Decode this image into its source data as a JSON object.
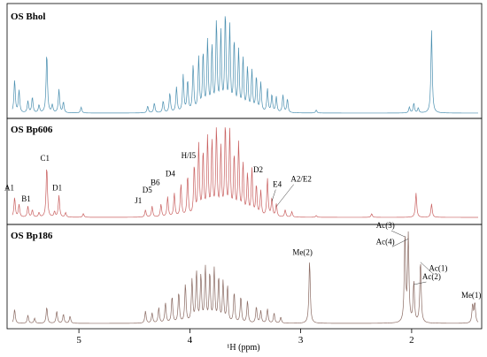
{
  "chart_data": {
    "type": "line",
    "xlabel": "¹H (ppm)",
    "x_axis": {
      "xlim": [
        5.6,
        1.4
      ],
      "reversed": true,
      "ticks": [
        5,
        4,
        3,
        2
      ],
      "tick_labels": [
        "5",
        "4",
        "3",
        "2"
      ]
    },
    "grid": false,
    "panels": [
      {
        "title": "OS Bhol",
        "color": "#4a8fb0",
        "peaks": [
          {
            "ppm": 5.58,
            "height": 0.34
          },
          {
            "ppm": 5.54,
            "height": 0.23
          },
          {
            "ppm": 5.46,
            "height": 0.12
          },
          {
            "ppm": 5.42,
            "height": 0.16
          },
          {
            "ppm": 5.36,
            "height": 0.08
          },
          {
            "ppm": 5.29,
            "height": 0.62
          },
          {
            "ppm": 5.24,
            "height": 0.08
          },
          {
            "ppm": 5.18,
            "height": 0.24
          },
          {
            "ppm": 5.14,
            "height": 0.11
          },
          {
            "ppm": 4.98,
            "height": 0.06
          },
          {
            "ppm": 4.38,
            "height": 0.07
          },
          {
            "ppm": 4.32,
            "height": 0.1
          },
          {
            "ppm": 4.24,
            "height": 0.12
          },
          {
            "ppm": 4.18,
            "height": 0.2
          },
          {
            "ppm": 4.12,
            "height": 0.26
          },
          {
            "ppm": 4.06,
            "height": 0.38
          },
          {
            "ppm": 4.02,
            "height": 0.32
          },
          {
            "ppm": 3.97,
            "height": 0.48
          },
          {
            "ppm": 3.92,
            "height": 0.55
          },
          {
            "ppm": 3.88,
            "height": 0.6
          },
          {
            "ppm": 3.84,
            "height": 0.72
          },
          {
            "ppm": 3.8,
            "height": 0.66
          },
          {
            "ppm": 3.76,
            "height": 0.92
          },
          {
            "ppm": 3.72,
            "height": 0.8
          },
          {
            "ppm": 3.68,
            "height": 1.0
          },
          {
            "ppm": 3.64,
            "height": 0.86
          },
          {
            "ppm": 3.6,
            "height": 0.72
          },
          {
            "ppm": 3.56,
            "height": 0.62
          },
          {
            "ppm": 3.52,
            "height": 0.55
          },
          {
            "ppm": 3.48,
            "height": 0.45
          },
          {
            "ppm": 3.44,
            "height": 0.42
          },
          {
            "ppm": 3.4,
            "height": 0.36
          },
          {
            "ppm": 3.36,
            "height": 0.3
          },
          {
            "ppm": 3.3,
            "height": 0.24
          },
          {
            "ppm": 3.26,
            "height": 0.18
          },
          {
            "ppm": 3.22,
            "height": 0.16
          },
          {
            "ppm": 3.16,
            "height": 0.18
          },
          {
            "ppm": 3.12,
            "height": 0.14
          },
          {
            "ppm": 2.86,
            "height": 0.03
          },
          {
            "ppm": 2.02,
            "height": 0.06
          },
          {
            "ppm": 1.98,
            "height": 0.1
          },
          {
            "ppm": 1.94,
            "height": 0.05
          },
          {
            "ppm": 1.82,
            "height": 0.85
          }
        ],
        "labels": []
      },
      {
        "title": "OS Bp606",
        "color": "#c96060",
        "peaks": [
          {
            "ppm": 5.58,
            "height": 0.22
          },
          {
            "ppm": 5.54,
            "height": 0.14
          },
          {
            "ppm": 5.46,
            "height": 0.12
          },
          {
            "ppm": 5.42,
            "height": 0.08
          },
          {
            "ppm": 5.36,
            "height": 0.05
          },
          {
            "ppm": 5.29,
            "height": 0.57
          },
          {
            "ppm": 5.22,
            "height": 0.06
          },
          {
            "ppm": 5.18,
            "height": 0.24
          },
          {
            "ppm": 5.12,
            "height": 0.05
          },
          {
            "ppm": 4.96,
            "height": 0.04
          },
          {
            "ppm": 4.4,
            "height": 0.08
          },
          {
            "ppm": 4.34,
            "height": 0.12
          },
          {
            "ppm": 4.26,
            "height": 0.14
          },
          {
            "ppm": 4.2,
            "height": 0.22
          },
          {
            "ppm": 4.14,
            "height": 0.26
          },
          {
            "ppm": 4.08,
            "height": 0.36
          },
          {
            "ppm": 4.02,
            "height": 0.45
          },
          {
            "ppm": 3.96,
            "height": 0.56
          },
          {
            "ppm": 3.92,
            "height": 0.78
          },
          {
            "ppm": 3.88,
            "height": 0.7
          },
          {
            "ppm": 3.84,
            "height": 0.86
          },
          {
            "ppm": 3.8,
            "height": 0.82
          },
          {
            "ppm": 3.76,
            "height": 0.96
          },
          {
            "ppm": 3.72,
            "height": 0.74
          },
          {
            "ppm": 3.68,
            "height": 1.0
          },
          {
            "ppm": 3.64,
            "height": 0.92
          },
          {
            "ppm": 3.6,
            "height": 0.66
          },
          {
            "ppm": 3.56,
            "height": 0.8
          },
          {
            "ppm": 3.52,
            "height": 0.58
          },
          {
            "ppm": 3.48,
            "height": 0.46
          },
          {
            "ppm": 3.44,
            "height": 0.52
          },
          {
            "ppm": 3.4,
            "height": 0.34
          },
          {
            "ppm": 3.36,
            "height": 0.28
          },
          {
            "ppm": 3.3,
            "height": 0.42
          },
          {
            "ppm": 3.26,
            "height": 0.2
          },
          {
            "ppm": 3.22,
            "height": 0.14
          },
          {
            "ppm": 3.14,
            "height": 0.08
          },
          {
            "ppm": 3.08,
            "height": 0.06
          },
          {
            "ppm": 2.86,
            "height": 0.02
          },
          {
            "ppm": 2.36,
            "height": 0.04
          },
          {
            "ppm": 1.96,
            "height": 0.27
          },
          {
            "ppm": 1.82,
            "height": 0.15
          }
        ],
        "labels": [
          {
            "text": "A1",
            "ppm": 5.58
          },
          {
            "text": "B1",
            "ppm": 5.46
          },
          {
            "text": "C1",
            "ppm": 5.29
          },
          {
            "text": "D1",
            "ppm": 5.18
          },
          {
            "text": "J1",
            "ppm": 4.4
          },
          {
            "text": "D5",
            "ppm": 4.32
          },
          {
            "text": "B6",
            "ppm": 4.2
          },
          {
            "text": "D4",
            "ppm": 4.08
          },
          {
            "text": "H/I5",
            "ppm": 3.98
          },
          {
            "text": "D2",
            "ppm": 3.32
          },
          {
            "text": "E4",
            "ppm": 3.26
          },
          {
            "text": "A2/E2",
            "ppm": 3.22
          }
        ]
      },
      {
        "title": "OS Bp186",
        "color": "#8a6a62",
        "peaks": [
          {
            "ppm": 5.58,
            "height": 0.14
          },
          {
            "ppm": 5.46,
            "height": 0.08
          },
          {
            "ppm": 5.4,
            "height": 0.05
          },
          {
            "ppm": 5.29,
            "height": 0.16
          },
          {
            "ppm": 5.2,
            "height": 0.12
          },
          {
            "ppm": 5.14,
            "height": 0.09
          },
          {
            "ppm": 5.08,
            "height": 0.07
          },
          {
            "ppm": 4.4,
            "height": 0.12
          },
          {
            "ppm": 4.34,
            "height": 0.1
          },
          {
            "ppm": 4.28,
            "height": 0.15
          },
          {
            "ppm": 4.22,
            "height": 0.2
          },
          {
            "ppm": 4.16,
            "height": 0.26
          },
          {
            "ppm": 4.1,
            "height": 0.3
          },
          {
            "ppm": 4.04,
            "height": 0.38
          },
          {
            "ppm": 3.98,
            "height": 0.42
          },
          {
            "ppm": 3.94,
            "height": 0.5
          },
          {
            "ppm": 3.9,
            "height": 0.46
          },
          {
            "ppm": 3.86,
            "height": 0.54
          },
          {
            "ppm": 3.82,
            "height": 0.48
          },
          {
            "ppm": 3.78,
            "height": 0.52
          },
          {
            "ppm": 3.74,
            "height": 0.44
          },
          {
            "ppm": 3.7,
            "height": 0.4
          },
          {
            "ppm": 3.66,
            "height": 0.36
          },
          {
            "ppm": 3.6,
            "height": 0.3
          },
          {
            "ppm": 3.54,
            "height": 0.26
          },
          {
            "ppm": 3.48,
            "height": 0.22
          },
          {
            "ppm": 3.4,
            "height": 0.16
          },
          {
            "ppm": 3.36,
            "height": 0.12
          },
          {
            "ppm": 3.3,
            "height": 0.14
          },
          {
            "ppm": 3.24,
            "height": 0.1
          },
          {
            "ppm": 3.18,
            "height": 0.06
          },
          {
            "ppm": 2.92,
            "height": 0.62
          },
          {
            "ppm": 2.06,
            "height": 0.87
          },
          {
            "ppm": 2.03,
            "height": 0.85
          },
          {
            "ppm": 1.98,
            "height": 0.4
          },
          {
            "ppm": 1.92,
            "height": 0.62
          },
          {
            "ppm": 1.45,
            "height": 0.18
          },
          {
            "ppm": 1.43,
            "height": 0.2
          }
        ],
        "labels": [
          {
            "text": "Me(2)",
            "ppm": 2.92
          },
          {
            "text": "Ac(3)",
            "ppm": 2.06
          },
          {
            "text": "Ac(4)",
            "ppm": 2.03
          },
          {
            "text": "Ac(2)",
            "ppm": 1.98
          },
          {
            "text": "Ac(1)",
            "ppm": 1.92
          },
          {
            "text": "Me(1)",
            "ppm": 1.43
          }
        ]
      }
    ]
  }
}
